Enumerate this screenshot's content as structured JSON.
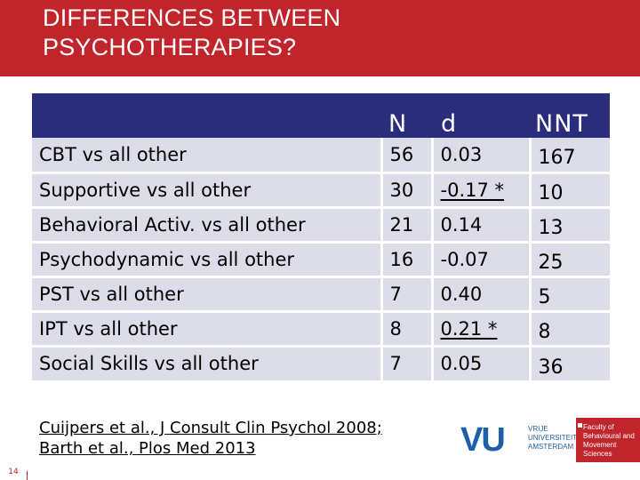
{
  "slide": {
    "title_line1": "DIFFERENCES BETWEEN",
    "title_line2": "PSYCHOTHERAPIES?",
    "page_number": "14"
  },
  "table": {
    "headers": {
      "label": "",
      "n": "N",
      "d": "d",
      "nnt": "NNT"
    },
    "rows": [
      {
        "label": "CBT vs all other",
        "n": "56",
        "d": "0.03",
        "nnt": "167",
        "d_underlined": false
      },
      {
        "label": "Supportive vs all other",
        "n": "30",
        "d": "-0.17 *",
        "nnt": "10",
        "d_underlined": true
      },
      {
        "label": "Behavioral Activ. vs all other",
        "n": "21",
        "d": "0.14",
        "nnt": "13",
        "d_underlined": false
      },
      {
        "label": "Psychodynamic vs all other",
        "n": "16",
        "d": "-0.07",
        "nnt": "25",
        "d_underlined": false
      },
      {
        "label": "PST vs all other",
        "n": "7",
        "d": "0.40",
        "nnt": "5",
        "d_underlined": false
      },
      {
        "label": "IPT vs all other",
        "n": "8",
        "d": "0.21 *",
        "nnt": "8",
        "d_underlined": true
      },
      {
        "label": "Social Skills vs all other",
        "n": "7",
        "d": "0.05",
        "nnt": "36",
        "d_underlined": false
      }
    ]
  },
  "references": {
    "line1": "Cuijpers et al., J Consult Clin Psychol 2008;",
    "line2": "Barth et al., Plos Med 2013"
  },
  "logos": {
    "vu_mark": "VU",
    "vu_sub1": "VRIJE",
    "vu_sub2": "UNIVERSITEIT",
    "vu_sub3": "AMSTERDAM",
    "faculty1": "Faculty of",
    "faculty2": "Behavioural and",
    "faculty3": "Movement Sciences"
  },
  "colors": {
    "title_bg": "#c0252b",
    "header_bg": "#2a2d7c",
    "row_bg": "#dcdde8",
    "vu_blue": "#1d5fa8"
  }
}
